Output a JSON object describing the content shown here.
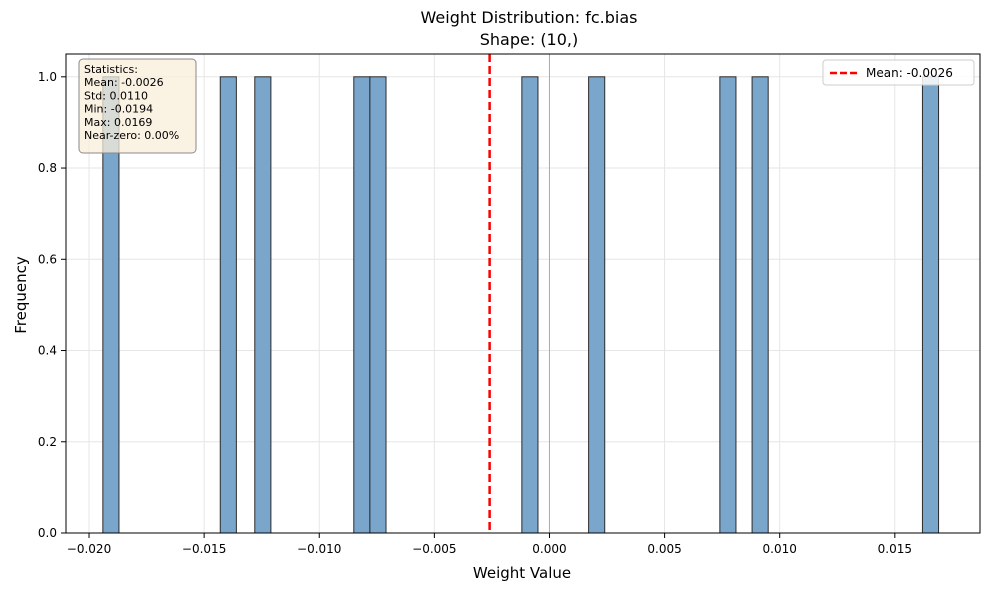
{
  "chart_data": {
    "type": "bar",
    "title": "Weight Distribution: fc.bias",
    "subtitle": "Shape: (10,)",
    "xlabel": "Weight Value",
    "ylabel": "Frequency",
    "xlim": [
      -0.021,
      0.0187
    ],
    "ylim": [
      0,
      1.05
    ],
    "xticks": [
      -0.02,
      -0.015,
      -0.01,
      -0.005,
      0.0,
      0.005,
      0.01,
      0.015
    ],
    "xtick_labels": [
      "−0.020",
      "−0.015",
      "−0.010",
      "−0.005",
      "0.000",
      "0.005",
      "0.010",
      "0.015"
    ],
    "yticks": [
      0.0,
      0.2,
      0.4,
      0.6,
      0.8,
      1.0
    ],
    "ytick_labels": [
      "0.0",
      "0.2",
      "0.4",
      "0.6",
      "0.8",
      "1.0"
    ],
    "bins": [
      {
        "x0": -0.0194,
        "x1": -0.0187,
        "count": 1
      },
      {
        "x0": -0.0143,
        "x1": -0.0136,
        "count": 1
      },
      {
        "x0": -0.0128,
        "x1": -0.0121,
        "count": 1
      },
      {
        "x0": -0.0085,
        "x1": -0.0078,
        "count": 1
      },
      {
        "x0": -0.0078,
        "x1": -0.0071,
        "count": 1
      },
      {
        "x0": -0.0012,
        "x1": -0.0005,
        "count": 1
      },
      {
        "x0": 0.0017,
        "x1": 0.0024,
        "count": 1
      },
      {
        "x0": 0.0074,
        "x1": 0.0081,
        "count": 1
      },
      {
        "x0": 0.0088,
        "x1": 0.0095,
        "count": 1
      },
      {
        "x0": 0.0162,
        "x1": 0.0169,
        "count": 1
      }
    ],
    "mean": -0.0026,
    "mean_line_label": "Mean: -0.0026",
    "zero_line": 0.0,
    "grid": true,
    "legend_position": "top-right",
    "stats_box": [
      "Statistics:",
      "Mean: -0.0026",
      "Std: 0.0110",
      "Min: -0.0194",
      "Max: 0.0169",
      "Near-zero: 0.00%"
    ],
    "colors": {
      "bar_fill": "#7ba6cb",
      "bar_edge": "#2b2b2b",
      "mean_line": "#ff0000",
      "zero_line": "#aaaaaa",
      "grid": "#e6e6e6",
      "stats_box_fill": "#f8edd9",
      "stats_box_edge": "#8a8a8a"
    }
  }
}
